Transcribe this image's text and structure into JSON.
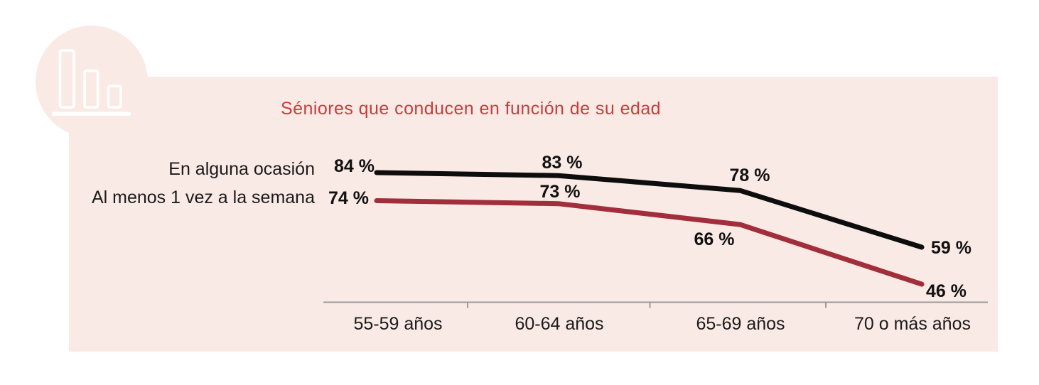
{
  "panel": {
    "bg": "#FAEAE6"
  },
  "icon": {
    "name": "bar-chart-icon",
    "color": "#FFFFFF"
  },
  "chart_data": {
    "type": "line",
    "title": "Séniores que conducen en función de su edad",
    "title_color": "#C83C3C",
    "categories": [
      "55-59 años",
      "60-64 años",
      "65-69 años",
      "70 o más años"
    ],
    "series": [
      {
        "name": "En alguna ocasión",
        "color": "#0D0D0D",
        "values": [
          84,
          83,
          78,
          59
        ],
        "labels": [
          "84 %",
          "83 %",
          "78 %",
          "59 %"
        ]
      },
      {
        "name": "Al menos 1 vez a la semana",
        "color": "#A22E3C",
        "values": [
          74,
          73,
          66,
          46
        ],
        "labels": [
          "74 %",
          "73 %",
          "66 %",
          "46 %"
        ]
      }
    ],
    "ylim": [
      40,
      90
    ],
    "grid": false,
    "legend_position": "left",
    "axis_color": "#9B9B9B",
    "label_color": "#111111",
    "tick_label_color": "#1B1B1B"
  }
}
